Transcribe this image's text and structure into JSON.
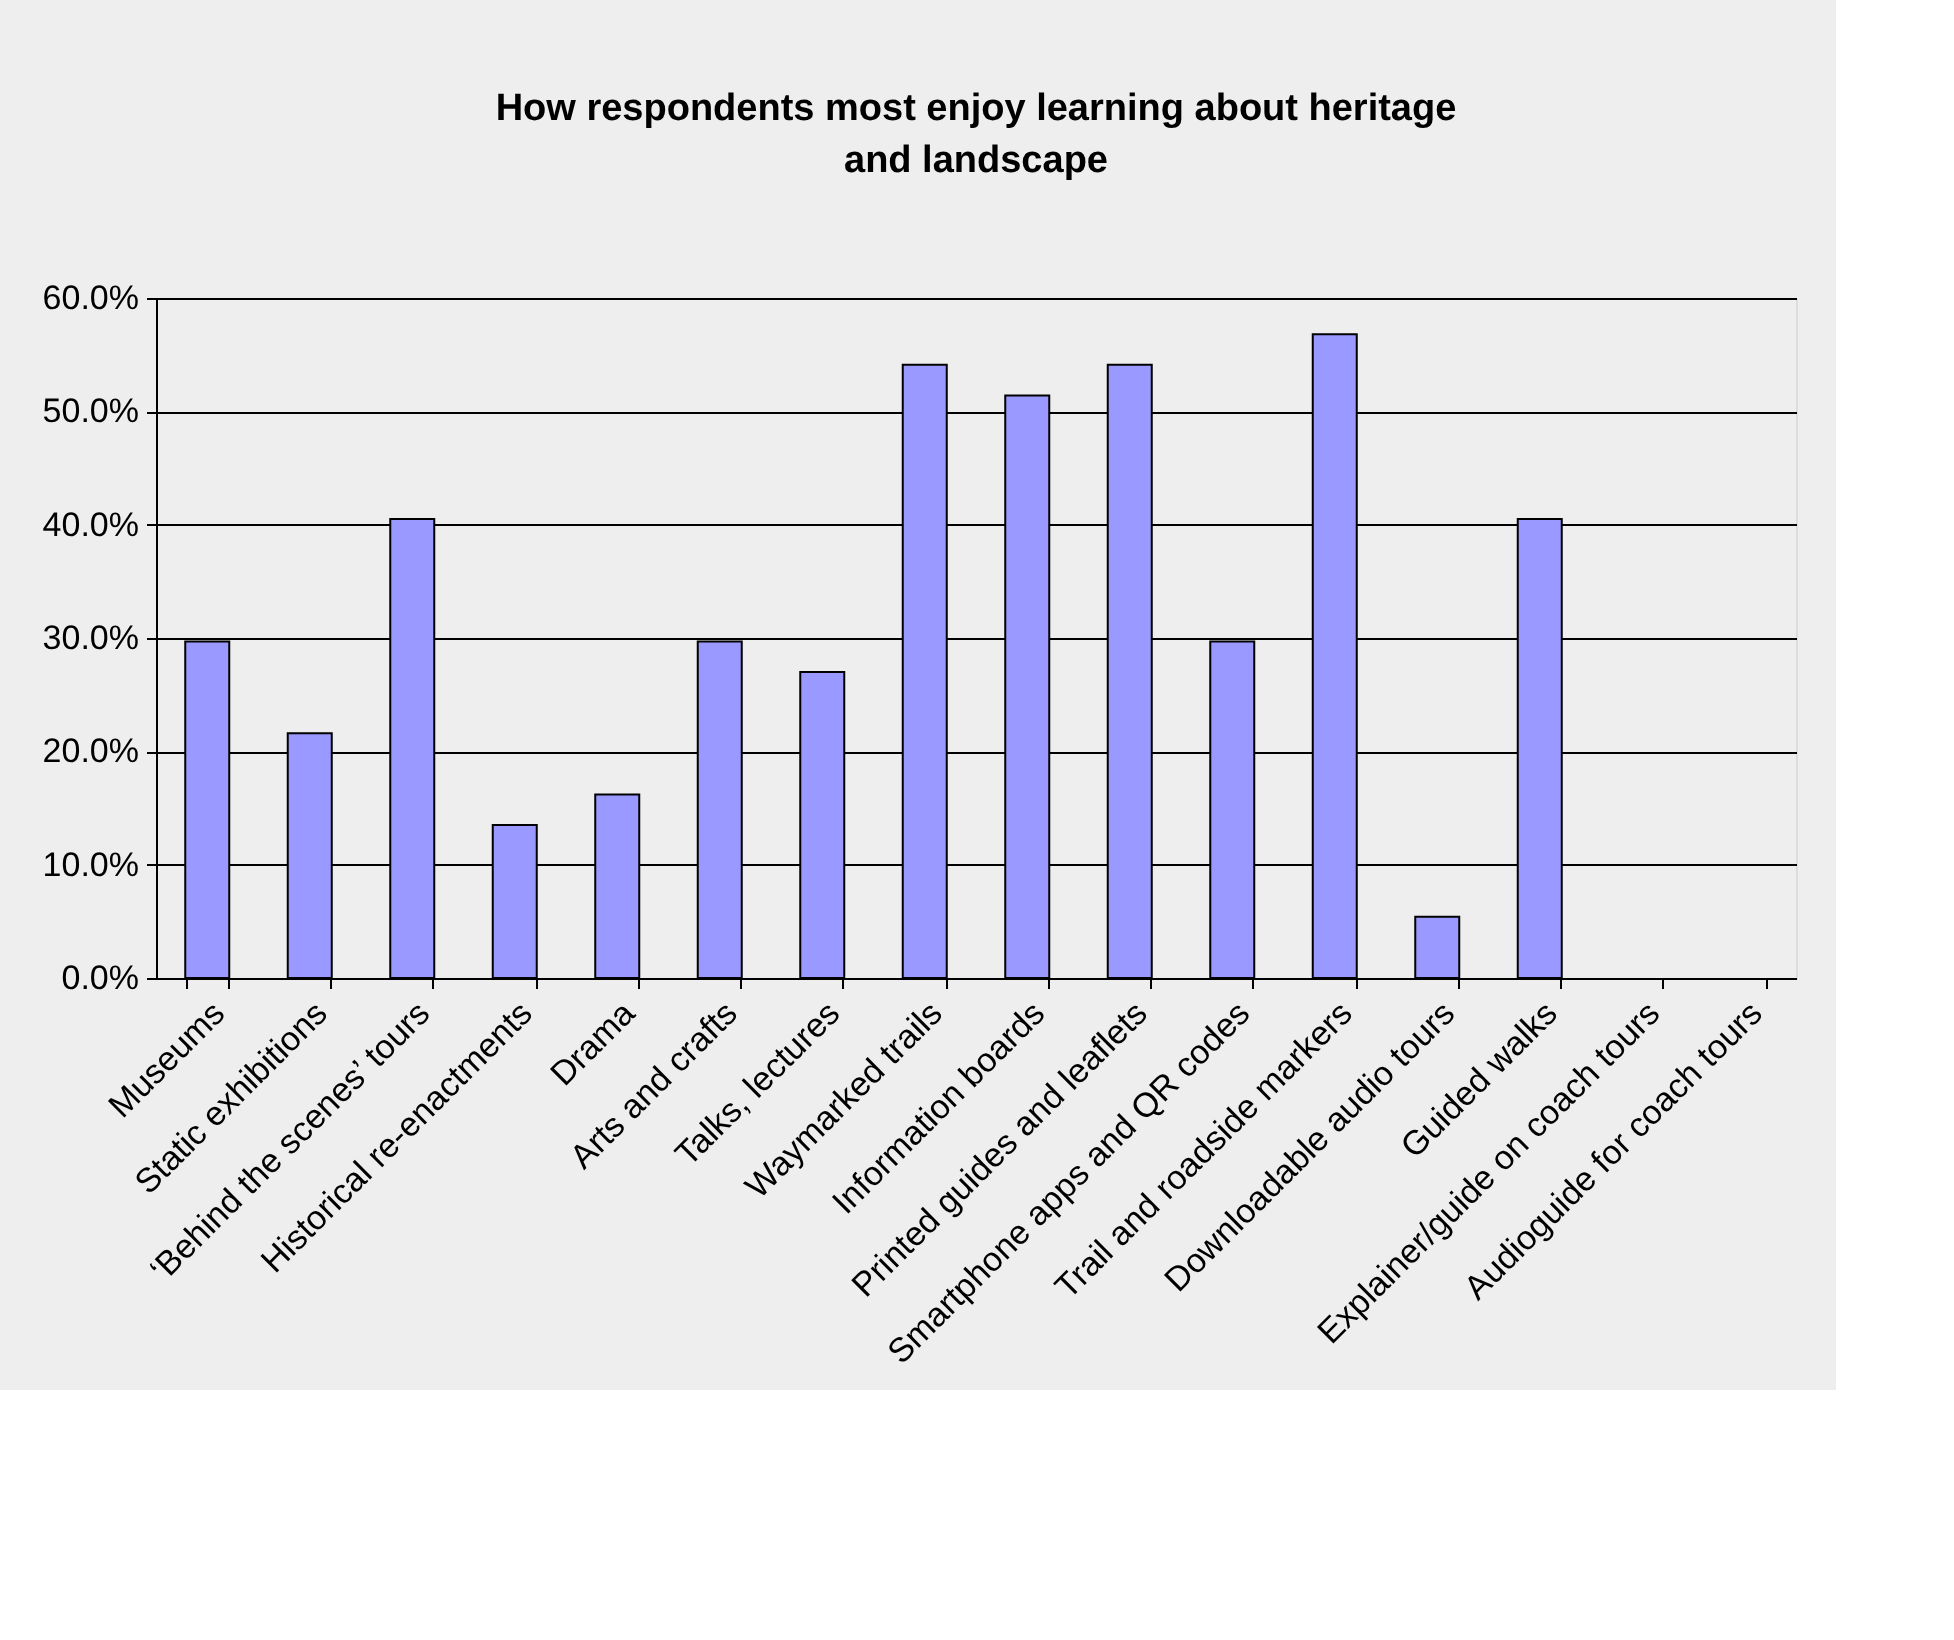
{
  "chart_data": {
    "type": "bar",
    "title": "How respondents most enjoy learning about heritage and landscape",
    "categories": [
      "Museums",
      "Static exhibitions",
      "‘Behind the scenes’ tours",
      "Historical re-enactments",
      "Drama",
      "Arts and crafts",
      "Talks, lectures",
      "Waymarked trails",
      "Information boards",
      "Printed guides and leaflets",
      "Smartphone apps and QR codes",
      "Trail and roadside markers",
      "Downloadable audio tours",
      "Guided walks",
      "Explainer/guide on coach tours",
      "Audioguide for coach tours"
    ],
    "values": [
      29.7,
      21.6,
      40.5,
      13.5,
      16.2,
      29.7,
      27.0,
      54.1,
      51.4,
      54.1,
      29.7,
      56.8,
      5.4,
      40.5,
      0,
      0
    ],
    "color": "#9999ff",
    "ylim": [
      0,
      60
    ],
    "yticks": [
      {
        "value": 0,
        "label": "0.0%"
      },
      {
        "value": 10,
        "label": "10.0%"
      },
      {
        "value": 20,
        "label": "20.0%"
      },
      {
        "value": 30,
        "label": "30.0%"
      },
      {
        "value": 40,
        "label": "40.0%"
      },
      {
        "value": 50,
        "label": "50.0%"
      },
      {
        "value": 60,
        "label": "60.0%"
      }
    ],
    "grid": "y"
  }
}
